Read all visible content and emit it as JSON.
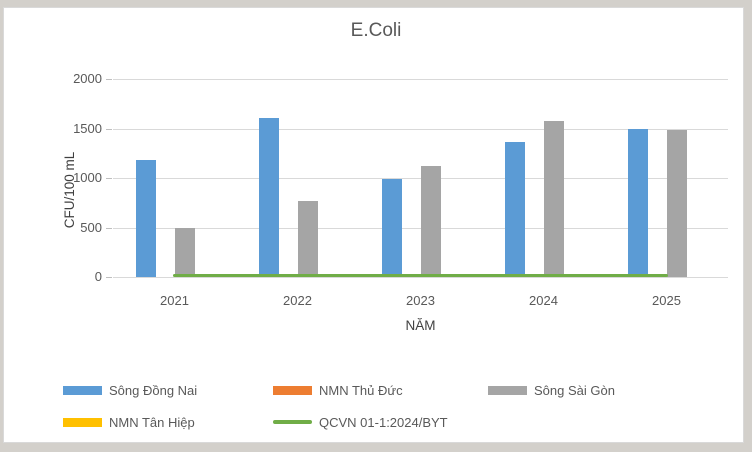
{
  "chart_data": {
    "type": "bar",
    "title": "E.Coli",
    "xlabel": "NĂM",
    "ylabel": "CFU/100 mL",
    "categories": [
      "2021",
      "2022",
      "2023",
      "2024",
      "2025"
    ],
    "series": [
      {
        "name": "Sông Đồng Nai",
        "type": "bar",
        "color": "#5B9BD5",
        "values": [
          1180,
          1610,
          990,
          1360,
          1500
        ]
      },
      {
        "name": "NMN Thủ Đức",
        "type": "bar",
        "color": "#ED7D31",
        "values": [
          0,
          0,
          0,
          0,
          0
        ]
      },
      {
        "name": "Sông Sài Gòn",
        "type": "bar",
        "color": "#A5A5A5",
        "values": [
          500,
          770,
          1120,
          1580,
          1490
        ]
      },
      {
        "name": "NMN Tân Hiệp",
        "type": "bar",
        "color": "#FFC000",
        "values": [
          0,
          0,
          0,
          0,
          0
        ]
      },
      {
        "name": "QCVN 01-1:2024/BYT",
        "type": "line",
        "color": "#70AD47",
        "values": [
          0,
          0,
          0,
          0,
          0
        ]
      }
    ],
    "ylim": [
      0,
      2000
    ],
    "yticks": [
      0,
      500,
      1000,
      1500,
      2000
    ],
    "grid": true,
    "legend_position": "bottom",
    "colors": {
      "text": "#595959",
      "gridline": "#D9D9D9",
      "panel_bg": "#FFFFFF",
      "outer_bg": "#D3D0CB"
    }
  }
}
